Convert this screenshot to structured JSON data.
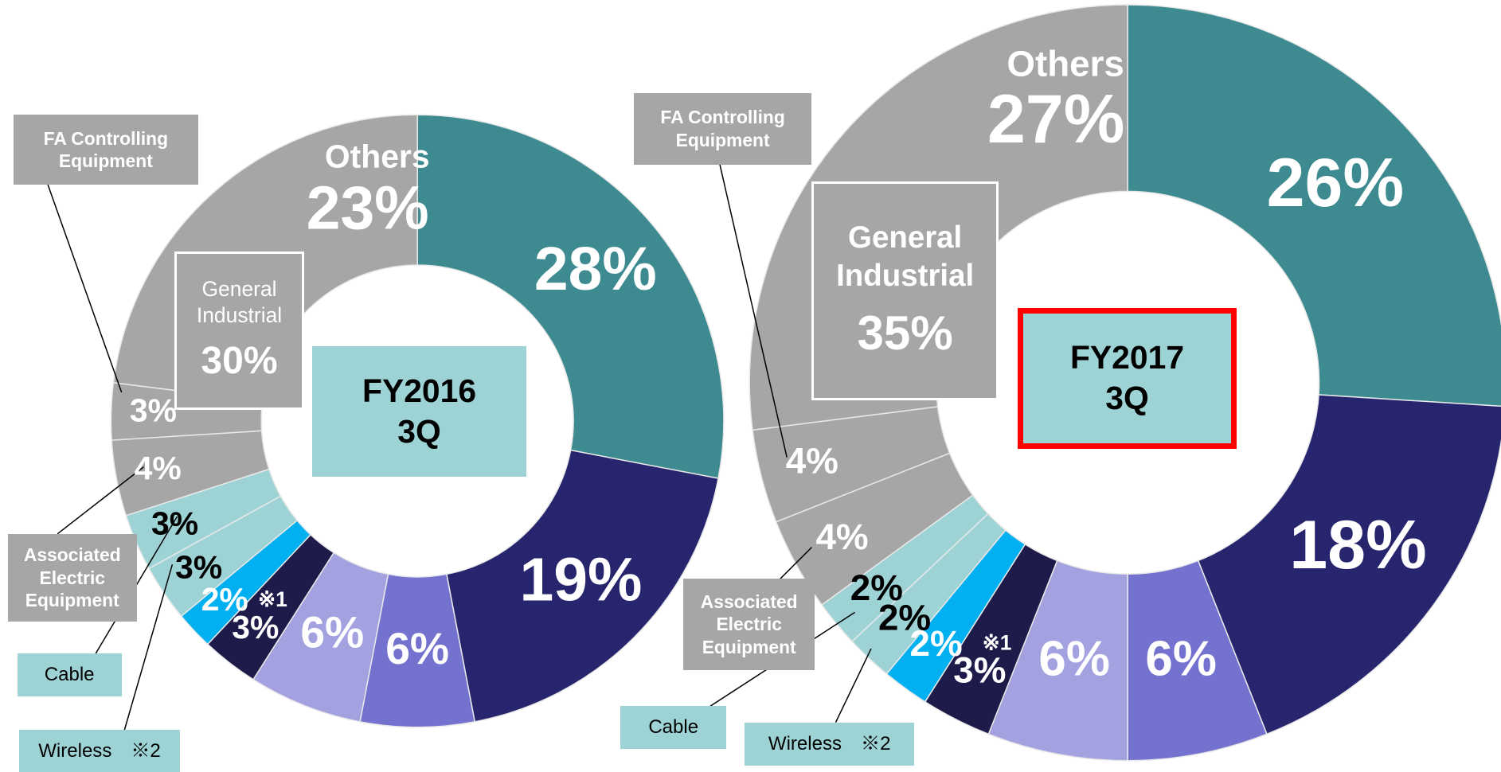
{
  "chart_data": [
    {
      "type": "donut",
      "center_label": [
        "FY2016",
        "3Q"
      ],
      "categories": [
        null,
        null,
        null,
        null,
        null,
        null,
        "Wireless　※2",
        "Cable",
        "Associated Electric Equipment",
        "FA Controlling Equipment",
        "Others"
      ],
      "values": [
        28,
        19,
        6,
        6,
        3,
        2,
        3,
        3,
        4,
        3,
        23
      ],
      "value_labels": [
        "28%",
        "19%",
        "6%",
        "6%",
        "3%",
        "2%",
        "3%",
        "3%",
        "4%",
        "3%",
        "23%"
      ],
      "colors": [
        "#3d8b91",
        "#27256e",
        "#7472cf",
        "#a3a1e0",
        "#1e1b4b",
        "#00b0f0",
        "#9ed3d6",
        "#9ed3d6",
        "#a6a6a6",
        "#a6a6a6",
        "#a6a6a6"
      ],
      "notes": [
        {
          "segment": 4,
          "label": "※1"
        }
      ],
      "groups": [
        {
          "label": "General Industrial",
          "value": 30,
          "value_label": "30%"
        }
      ]
    },
    {
      "type": "donut",
      "center_label": [
        "FY2017",
        "3Q"
      ],
      "categories": [
        null,
        null,
        null,
        null,
        null,
        null,
        "Wireless　※2",
        "Cable",
        "Associated Electric Equipment",
        "FA Controlling Equipment",
        "Others"
      ],
      "values": [
        26,
        18,
        6,
        6,
        3,
        2,
        2,
        2,
        4,
        4,
        27
      ],
      "value_labels": [
        "26%",
        "18%",
        "6%",
        "6%",
        "3%",
        "2%",
        "2%",
        "2%",
        "4%",
        "4%",
        "27%"
      ],
      "colors": [
        "#3d8b91",
        "#27256e",
        "#7472cf",
        "#a3a1e0",
        "#1e1b4b",
        "#00b0f0",
        "#9ed3d6",
        "#9ed3d6",
        "#a6a6a6",
        "#a6a6a6",
        "#a6a6a6"
      ],
      "notes": [
        {
          "segment": 4,
          "label": "※1"
        }
      ],
      "groups": [
        {
          "label": "General Industrial",
          "value": 35,
          "value_label": "35%"
        }
      ]
    }
  ]
}
